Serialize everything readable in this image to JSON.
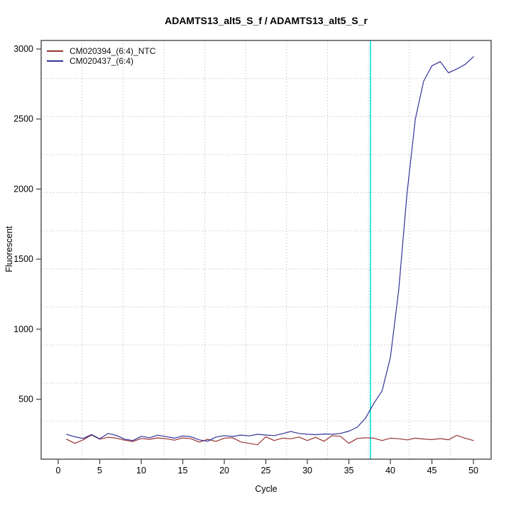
{
  "figure": {
    "background": "#ffffff",
    "box_color": "#3d3d3d",
    "grid_color": "#b8b8b8",
    "tick_label_color": "#000000"
  },
  "chart_data": {
    "type": "line",
    "title": "ADAMTS13_alt5_S_f / ADAMTS13_alt5_S_r",
    "xlabel": "Cycle",
    "ylabel": "Fluorescent",
    "xlim": [
      -2.05,
      52.13
    ],
    "ylim": [
      72,
      3061
    ],
    "x_ticks": [
      0,
      5,
      10,
      15,
      20,
      25,
      30,
      35,
      40,
      45,
      50
    ],
    "x_tick_labels": [
      "0",
      "5",
      "10",
      "15",
      "20",
      "25",
      "30",
      "35",
      "40",
      "45",
      "50"
    ],
    "y_ticks": [
      500,
      1000,
      1500,
      2000,
      2500,
      3000
    ],
    "y_tick_labels": [
      "500",
      "1000",
      "1500",
      "2000",
      "2500",
      "3000"
    ],
    "grid": {
      "style": "dotted",
      "color": "#b8b8b8",
      "nx": 11,
      "ny": 11
    },
    "threshold_line": {
      "x": 37.6,
      "color": "#00e0e0"
    },
    "legend": {
      "position": "top-left"
    },
    "x": [
      1,
      2,
      3,
      4,
      5,
      6,
      7,
      8,
      9,
      10,
      11,
      12,
      13,
      14,
      15,
      16,
      17,
      18,
      19,
      20,
      21,
      22,
      23,
      24,
      25,
      26,
      27,
      28,
      29,
      30,
      31,
      32,
      33,
      34,
      35,
      36,
      37,
      38,
      39,
      40,
      41,
      42,
      43,
      44,
      45,
      46,
      47,
      48,
      49,
      50
    ],
    "series": [
      {
        "name": "CM020394_(6:4)_NTC",
        "color": "#993333",
        "values": [
          215,
          185,
          210,
          245,
          215,
          228,
          222,
          208,
          198,
          220,
          214,
          224,
          218,
          208,
          224,
          218,
          194,
          214,
          199,
          222,
          225,
          195,
          185,
          175,
          232,
          205,
          222,
          218,
          230,
          205,
          228,
          200,
          240,
          235,
          185,
          220,
          225,
          222,
          205,
          222,
          218,
          210,
          222,
          216,
          212,
          219,
          211,
          242,
          222,
          205
        ]
      },
      {
        "name": "CM020437_(6:4)",
        "color": "#333399",
        "values": [
          250,
          232,
          220,
          248,
          218,
          256,
          242,
          215,
          205,
          235,
          225,
          243,
          233,
          222,
          238,
          232,
          210,
          200,
          230,
          240,
          234,
          244,
          238,
          250,
          244,
          240,
          254,
          270,
          256,
          250,
          247,
          252,
          250,
          256,
          272,
          300,
          365,
          470,
          560,
          800,
          1280,
          1970,
          2500,
          2770,
          2880,
          2910,
          2830,
          2858,
          2890,
          2945
        ]
      }
    ]
  }
}
